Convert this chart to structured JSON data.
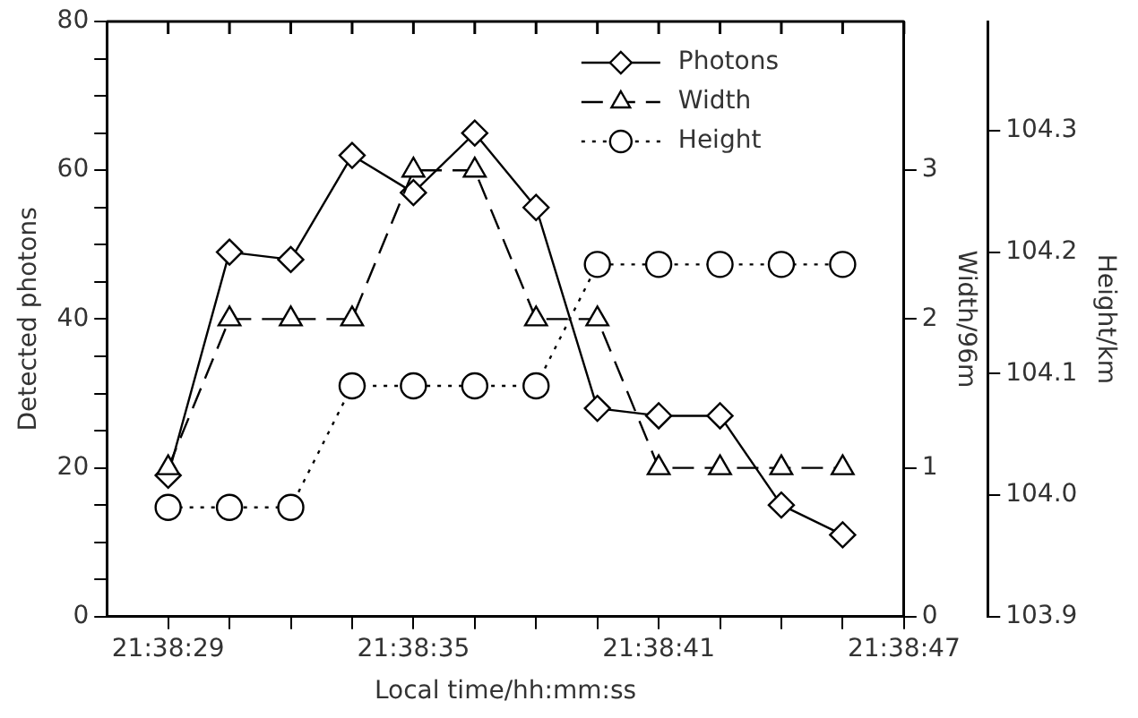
{
  "chart_data": {
    "type": "line",
    "xlabel": "Local time/hh:mm:ss",
    "ylabel": "Detected photons",
    "y2label": "Width/96m",
    "y3label": "Height/km",
    "x": [
      21.6413888889,
      21.6418055556,
      21.6422222222,
      21.6426388889,
      21.6430555556,
      21.6434722222,
      21.6438888889,
      21.6443055556,
      21.6447222222,
      21.6451388889,
      21.6455555556,
      21.6459722222
    ],
    "xlim": [
      21.6409722222,
      21.6463888889
    ],
    "xticks": [
      {
        "value": 21.6413888889,
        "label": "21:38:29"
      },
      {
        "value": 21.6418055556,
        "label": null
      },
      {
        "value": 21.6422222222,
        "label": null
      },
      {
        "value": 21.6426388889,
        "label": null
      },
      {
        "value": 21.6430555556,
        "label": "21:38:35"
      },
      {
        "value": 21.6434722222,
        "label": null
      },
      {
        "value": 21.6438888889,
        "label": null
      },
      {
        "value": 21.6443055556,
        "label": null
      },
      {
        "value": 21.6447222222,
        "label": "21:38:41"
      },
      {
        "value": 21.6451388889,
        "label": null
      },
      {
        "value": 21.6455555556,
        "label": null
      },
      {
        "value": 21.6459722222,
        "label": null
      },
      {
        "value": 21.6463888889,
        "label": "21:38:47"
      }
    ],
    "ylim": [
      0,
      80
    ],
    "yticks": [
      0,
      {
        "value": 5,
        "label": null
      },
      {
        "value": 10,
        "label": null
      },
      {
        "value": 15,
        "label": null
      },
      20,
      {
        "value": 25,
        "label": null
      },
      {
        "value": 30,
        "label": null
      },
      {
        "value": 35,
        "label": null
      },
      40,
      {
        "value": 45,
        "label": null
      },
      {
        "value": 50,
        "label": null
      },
      {
        "value": 55,
        "label": null
      },
      60,
      {
        "value": 65,
        "label": null
      },
      {
        "value": 70,
        "label": null
      },
      {
        "value": 75,
        "label": null
      },
      80
    ],
    "y2lim": [
      0,
      4
    ],
    "y2ticks": [
      0,
      1,
      2,
      3
    ],
    "y3lim": [
      103.9,
      104.39
    ],
    "y3ticks": [
      103.9,
      {
        "value": 104,
        "label": "104.0"
      },
      104.1,
      104.2,
      104.3
    ],
    "grid": false,
    "legend": "top right",
    "series": [
      {
        "name": "Photons",
        "color": "#000000",
        "marker": "diamond",
        "line_style": "solid",
        "values": [
          19,
          49,
          48,
          62,
          57,
          65,
          55,
          28,
          27,
          27,
          15,
          11
        ]
      },
      {
        "name": "Width",
        "color": "#000000",
        "marker": "triangle",
        "line_style": "dashed",
        "axis": "y2",
        "values": [
          1,
          2,
          2,
          2,
          3,
          3,
          2,
          2,
          1,
          1,
          1,
          1
        ]
      },
      {
        "name": "Height",
        "color": "#000000",
        "marker": "circle",
        "line_style": "dotted",
        "axis": "y3",
        "values": [
          103.99,
          103.99,
          103.99,
          104.09,
          104.09,
          104.09,
          104.09,
          104.19,
          104.19,
          104.19,
          104.19,
          104.19
        ]
      }
    ]
  }
}
